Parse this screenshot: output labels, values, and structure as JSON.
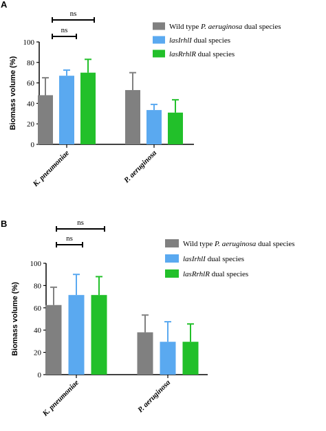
{
  "colors": {
    "wildtype": "#808080",
    "lasI": "#5aa9f0",
    "lasR": "#22c02a",
    "axis": "#000000"
  },
  "legend": [
    {
      "key": "wildtype",
      "prefix": "Wild type ",
      "italic": "P. aeruginosa",
      "suffix": " dual species"
    },
    {
      "key": "lasI",
      "prefix": "",
      "italic": "lasIrhlI",
      "suffix": " dual species"
    },
    {
      "key": "lasR",
      "prefix": "",
      "italic": "lasRrhlR",
      "suffix": " dual species"
    }
  ],
  "annotations": {
    "ns": "ns"
  },
  "chart_data": [
    {
      "panel": "A",
      "type": "bar",
      "ylabel": "Biomass volume  (%)",
      "ylim": [
        0,
        100
      ],
      "yticks": [
        "0",
        "20",
        "40",
        "60",
        "80",
        "100"
      ],
      "categories": [
        "K. pneumoniae",
        "P. aeruginosa"
      ],
      "series": [
        {
          "key": "wildtype",
          "values": [
            48,
            53
          ],
          "errors": [
            17,
            17
          ]
        },
        {
          "key": "lasI",
          "values": [
            67,
            33.5
          ],
          "errors": [
            5.5,
            5.5
          ]
        },
        {
          "key": "lasR",
          "values": [
            70,
            31
          ],
          "errors": [
            13,
            12.5
          ]
        }
      ],
      "significance": [
        {
          "label": "ns",
          "from": "lasI",
          "level": 1
        },
        {
          "label": "ns",
          "from": "lasR",
          "level": 2
        }
      ]
    },
    {
      "panel": "B",
      "type": "bar",
      "ylabel": "Biomass volume  (%)",
      "ylim": [
        0,
        100
      ],
      "yticks": [
        "0",
        "20",
        "40",
        "60",
        "80",
        "100"
      ],
      "categories": [
        "K. pneumoniae",
        "P. aeruginosa"
      ],
      "series": [
        {
          "key": "wildtype",
          "values": [
            62.5,
            38
          ],
          "errors": [
            16,
            15.5
          ]
        },
        {
          "key": "lasI",
          "values": [
            71.5,
            29.5
          ],
          "errors": [
            18.5,
            18
          ]
        },
        {
          "key": "lasR",
          "values": [
            71.5,
            29.5
          ],
          "errors": [
            16.5,
            16
          ]
        }
      ],
      "significance": [
        {
          "label": "ns",
          "from": "lasI",
          "level": 1
        },
        {
          "label": "ns",
          "from": "lasR",
          "level": 2
        }
      ]
    }
  ]
}
